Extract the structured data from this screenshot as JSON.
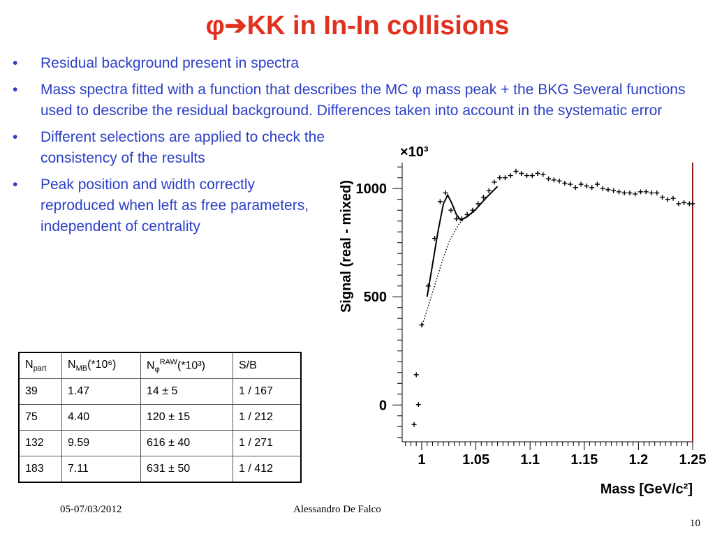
{
  "slide": {
    "title": "φ➔KK in In-In collisions",
    "bullets": [
      "Residual background present in spectra",
      "Mass spectra fitted with a function that describes the MC φ mass peak + the BKG Several functions used to describe the residual background. Differences taken into account in the systematic error",
      "Different selections are applied to check the consistency of the results",
      "Peak position and width correctly reproduced  when left as free parameters, independent of centrality"
    ],
    "bullet_marker": "•",
    "footer": {
      "date": "05-07/03/2012",
      "author": "Alessandro De Falco",
      "page": "10"
    },
    "colors": {
      "title": "#e0301e",
      "bullets": "#2b3fc7"
    }
  },
  "table": {
    "headers": [
      {
        "main": "N",
        "sub": "part",
        "sup": "",
        "tail": ""
      },
      {
        "main": "N",
        "sub": "MB",
        "sup": "",
        "tail": "(*10⁶)"
      },
      {
        "main": "N",
        "sub": "φ",
        "sup": "RAW",
        "tail": "(*10³)"
      },
      {
        "main": "S/B",
        "sub": "",
        "sup": "",
        "tail": ""
      }
    ],
    "rows": [
      [
        "39",
        "1.47",
        "14 ± 5",
        "1 / 167"
      ],
      [
        "75",
        "4.40",
        "120 ± 15",
        "1 / 212"
      ],
      [
        "132",
        "9.59",
        "616 ± 40",
        "1 / 271"
      ],
      [
        "183",
        "7.11",
        "631 ± 50",
        "1 / 412"
      ]
    ]
  },
  "chart_data": {
    "type": "scatter",
    "xlabel": "Mass [GeV/c²]",
    "ylabel": "Signal (real - mixed)",
    "multiplier": "×10³",
    "x_ticks": [
      "1",
      "1.05",
      "1.1",
      "1.15",
      "1.2",
      "1.25"
    ],
    "x_tick_values": [
      1.0,
      1.05,
      1.1,
      1.15,
      1.2,
      1.25
    ],
    "y_ticks": [
      "0",
      "500",
      "1000"
    ],
    "y_tick_values": [
      0,
      500,
      1000
    ],
    "xlim": [
      0.982,
      1.25
    ],
    "ylim": [
      -170,
      1120
    ],
    "points": [
      [
        0.993,
        -90
      ],
      [
        0.995,
        140
      ],
      [
        0.997,
        2
      ],
      [
        1.0,
        370
      ],
      [
        1.006,
        550
      ],
      [
        1.012,
        770
      ],
      [
        1.017,
        940
      ],
      [
        1.022,
        980
      ],
      [
        1.027,
        900
      ],
      [
        1.032,
        860
      ],
      [
        1.037,
        860
      ],
      [
        1.042,
        880
      ],
      [
        1.047,
        900
      ],
      [
        1.052,
        930
      ],
      [
        1.057,
        960
      ],
      [
        1.062,
        990
      ],
      [
        1.067,
        1030
      ],
      [
        1.072,
        1050
      ],
      [
        1.077,
        1050
      ],
      [
        1.082,
        1060
      ],
      [
        1.087,
        1080
      ],
      [
        1.092,
        1070
      ],
      [
        1.097,
        1060
      ],
      [
        1.102,
        1060
      ],
      [
        1.107,
        1070
      ],
      [
        1.112,
        1065
      ],
      [
        1.117,
        1045
      ],
      [
        1.122,
        1040
      ],
      [
        1.127,
        1035
      ],
      [
        1.132,
        1025
      ],
      [
        1.137,
        1020
      ],
      [
        1.142,
        1005
      ],
      [
        1.147,
        1020
      ],
      [
        1.152,
        1012
      ],
      [
        1.157,
        1005
      ],
      [
        1.162,
        1020
      ],
      [
        1.167,
        1000
      ],
      [
        1.172,
        995
      ],
      [
        1.177,
        990
      ],
      [
        1.182,
        985
      ],
      [
        1.187,
        980
      ],
      [
        1.192,
        980
      ],
      [
        1.197,
        975
      ],
      [
        1.202,
        985
      ],
      [
        1.207,
        985
      ],
      [
        1.212,
        980
      ],
      [
        1.217,
        980
      ],
      [
        1.222,
        960
      ],
      [
        1.227,
        950
      ],
      [
        1.232,
        955
      ],
      [
        1.237,
        930
      ],
      [
        1.242,
        935
      ],
      [
        1.247,
        930
      ],
      [
        1.25,
        930
      ]
    ],
    "fit_curve": [
      [
        1.005,
        500
      ],
      [
        1.01,
        650
      ],
      [
        1.015,
        800
      ],
      [
        1.02,
        930
      ],
      [
        1.024,
        970
      ],
      [
        1.028,
        930
      ],
      [
        1.032,
        880
      ],
      [
        1.036,
        855
      ],
      [
        1.042,
        870
      ],
      [
        1.05,
        905
      ],
      [
        1.06,
        960
      ],
      [
        1.07,
        1010
      ]
    ],
    "background_curve": [
      [
        1.0,
        360
      ],
      [
        1.005,
        440
      ],
      [
        1.01,
        520
      ],
      [
        1.015,
        600
      ],
      [
        1.02,
        680
      ],
      [
        1.025,
        750
      ],
      [
        1.03,
        800
      ],
      [
        1.035,
        840
      ],
      [
        1.04,
        865
      ],
      [
        1.045,
        880
      ],
      [
        1.05,
        900
      ]
    ]
  }
}
